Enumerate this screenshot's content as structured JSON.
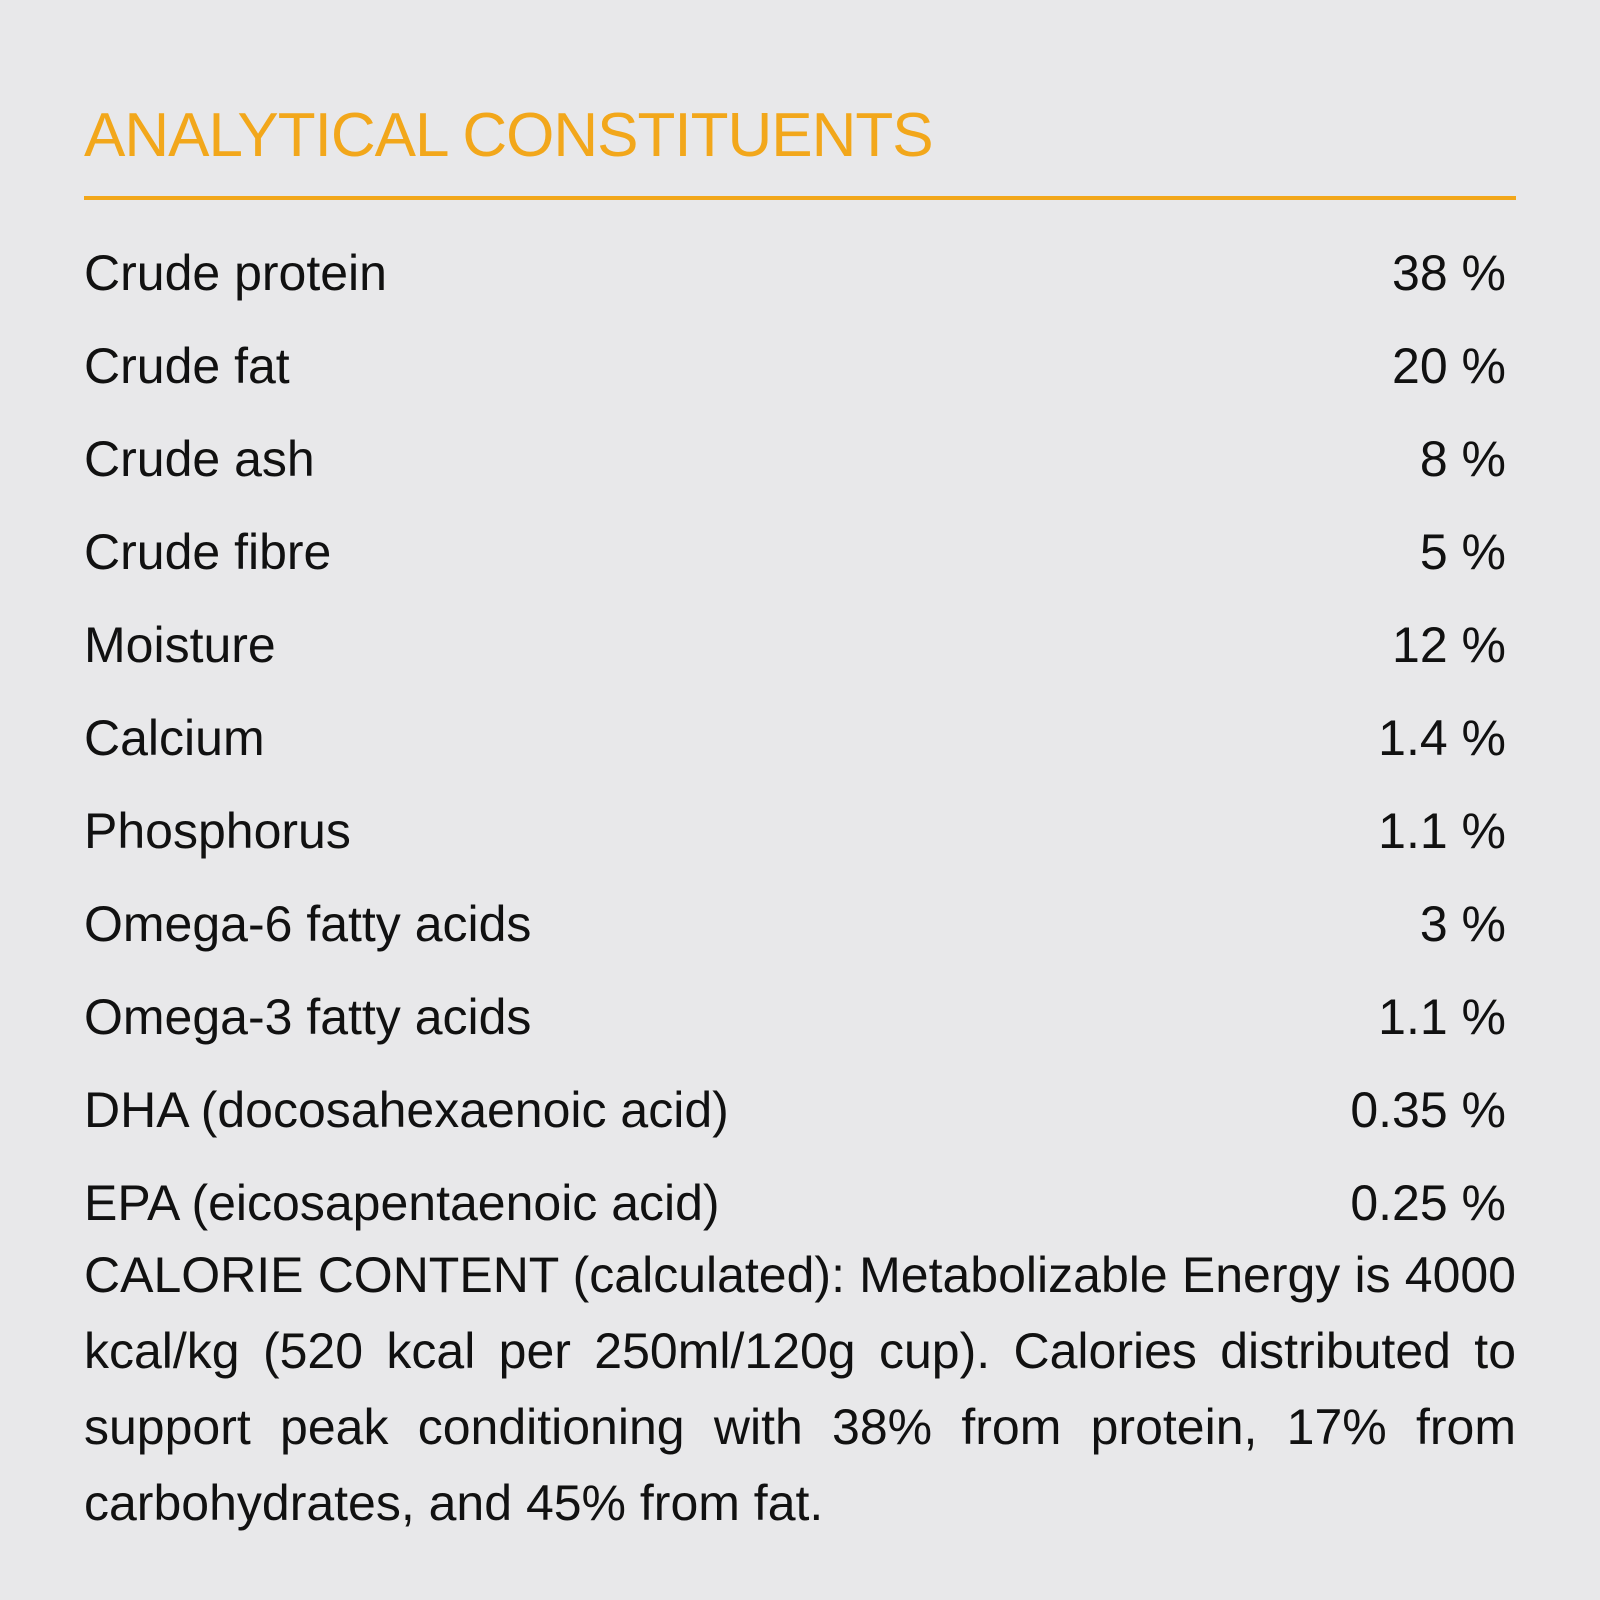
{
  "header": {
    "title": "ANALYTICAL CONSTITUENTS"
  },
  "table": {
    "rows": [
      [
        "Crude protein",
        "38 %"
      ],
      [
        "Crude fat",
        "20 %"
      ],
      [
        "Crude ash",
        "8 %"
      ],
      [
        "Crude fibre",
        "5 %"
      ],
      [
        "Moisture",
        "12 %"
      ],
      [
        "Calcium",
        "1.4 %"
      ],
      [
        "Phosphorus",
        "1.1 %"
      ],
      [
        "Omega-6 fatty acids",
        "3 %"
      ],
      [
        "Omega-3 fatty acids",
        "1.1 %"
      ],
      [
        "DHA (docosahexaenoic acid)",
        "0.35 %"
      ],
      [
        "EPA (eicosapentaenoic acid)",
        "0.25 %"
      ]
    ]
  },
  "footer": {
    "calorie_text": "CALORIE CONTENT (calculated): Metabolizable Energy is 4000 kcal/kg (520 kcal per 250ml/120g cup). Calories distributed to support peak conditioning with 38% from protein, 17% from carbohydrates, and 45% from fat."
  }
}
